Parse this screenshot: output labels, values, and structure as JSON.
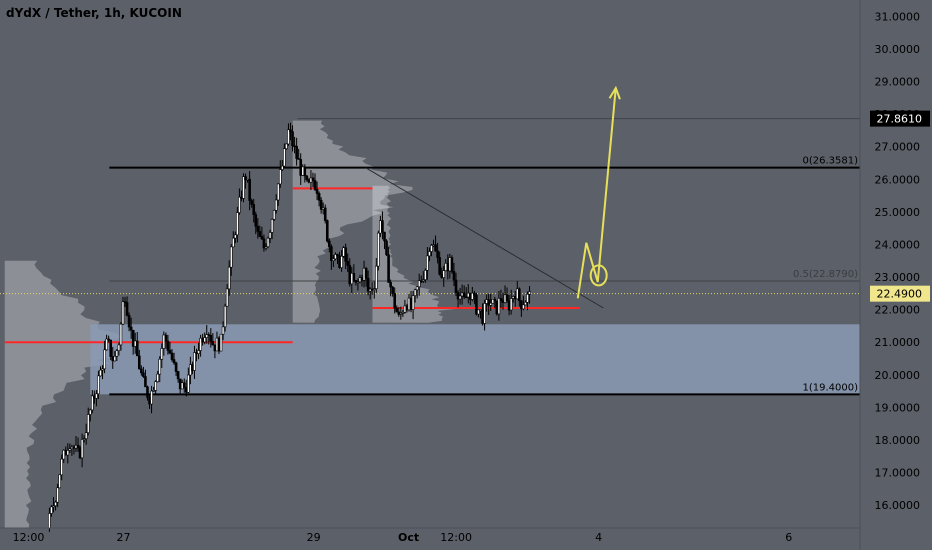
{
  "header": {
    "title": "dYdX / Tether, 1h, KUCOIN"
  },
  "chart_data": {
    "type": "candlestick",
    "title": "dYdX / Tether, 1h, KUCOIN",
    "ylim": [
      15.3,
      31.5
    ],
    "y_ticks": [
      "16.0000",
      "17.0000",
      "18.0000",
      "19.0000",
      "20.0000",
      "21.0000",
      "22.0000",
      "23.0000",
      "24.0000",
      "25.0000",
      "26.0000",
      "27.0000",
      "28.0000",
      "29.0000",
      "30.0000",
      "31.0000"
    ],
    "x_ticks": [
      {
        "label": "12:00",
        "t": 0.0
      },
      {
        "label": "27",
        "t": 1.0
      },
      {
        "label": "29",
        "t": 3.0
      },
      {
        "label": "Oct",
        "t": 4.0
      },
      {
        "label": "12:00",
        "t": 4.5
      },
      {
        "label": "4",
        "t": 6.0
      },
      {
        "label": "6",
        "t": 8.0
      }
    ],
    "x_range": [
      -0.3,
      8.75
    ],
    "current_price": {
      "label": "22.4900",
      "value": 22.49
    },
    "high_marker": {
      "label": "27.8610",
      "value": 27.861
    },
    "fib_levels": [
      {
        "label": "0(26.3581)",
        "value": 26.3581
      },
      {
        "label": "0.5(22.8790)",
        "value": 22.879
      },
      {
        "label": "1(19.4000)",
        "value": 19.4
      }
    ],
    "demand_zone": {
      "top": 21.55,
      "bottom": 19.4
    },
    "poc_levels": [
      {
        "value": 21.0,
        "t_start": -0.25,
        "t_end": 2.78
      },
      {
        "value": 25.72,
        "t_start": 2.78,
        "t_end": 3.62
      },
      {
        "value": 22.05,
        "t_start": 3.62,
        "t_end": 5.8
      }
    ],
    "trendline": {
      "start": {
        "t": 3.55,
        "y": 26.35
      },
      "end": {
        "t": 6.05,
        "y": 22.05
      }
    },
    "projection": [
      {
        "t": 5.78,
        "y": 22.35
      },
      {
        "t": 5.87,
        "y": 24.05
      },
      {
        "t": 5.99,
        "y": 22.85
      },
      {
        "t": 6.18,
        "y": 28.8
      }
    ],
    "target_circle": {
      "t": 6.0,
      "y": 23.05
    },
    "price_path": [
      {
        "t": 0.22,
        "v": 15.3
      },
      {
        "t": 0.3,
        "v": 16.2
      },
      {
        "t": 0.36,
        "v": 17.2
      },
      {
        "t": 0.45,
        "v": 18.0
      },
      {
        "t": 0.55,
        "v": 17.5
      },
      {
        "t": 0.62,
        "v": 18.3
      },
      {
        "t": 0.7,
        "v": 19.2
      },
      {
        "t": 0.78,
        "v": 20.1
      },
      {
        "t": 0.85,
        "v": 21.0
      },
      {
        "t": 0.92,
        "v": 20.4
      },
      {
        "t": 0.98,
        "v": 21.1
      },
      {
        "t": 1.03,
        "v": 22.6
      },
      {
        "t": 1.1,
        "v": 21.3
      },
      {
        "t": 1.17,
        "v": 20.5
      },
      {
        "t": 1.24,
        "v": 19.6
      },
      {
        "t": 1.3,
        "v": 19.3
      },
      {
        "t": 1.38,
        "v": 20.2
      },
      {
        "t": 1.45,
        "v": 21.2
      },
      {
        "t": 1.52,
        "v": 20.6
      },
      {
        "t": 1.6,
        "v": 19.7
      },
      {
        "t": 1.67,
        "v": 19.6
      },
      {
        "t": 1.75,
        "v": 20.3
      },
      {
        "t": 1.82,
        "v": 21.0
      },
      {
        "t": 1.9,
        "v": 21.5
      },
      {
        "t": 1.97,
        "v": 20.9
      },
      {
        "t": 2.05,
        "v": 21.0
      },
      {
        "t": 2.1,
        "v": 22.6
      },
      {
        "t": 2.17,
        "v": 24.0
      },
      {
        "t": 2.24,
        "v": 25.2
      },
      {
        "t": 2.3,
        "v": 26.2
      },
      {
        "t": 2.37,
        "v": 25.1
      },
      {
        "t": 2.43,
        "v": 24.3
      },
      {
        "t": 2.5,
        "v": 23.9
      },
      {
        "t": 2.57,
        "v": 24.6
      },
      {
        "t": 2.63,
        "v": 25.6
      },
      {
        "t": 2.7,
        "v": 26.5
      },
      {
        "t": 2.76,
        "v": 27.5
      },
      {
        "t": 2.83,
        "v": 26.8
      },
      {
        "t": 2.9,
        "v": 26.2
      },
      {
        "t": 2.96,
        "v": 25.7
      },
      {
        "t": 3.02,
        "v": 26.0
      },
      {
        "t": 3.08,
        "v": 25.6
      },
      {
        "t": 3.13,
        "v": 24.8
      },
      {
        "t": 3.2,
        "v": 23.8
      },
      {
        "t": 3.27,
        "v": 23.4
      },
      {
        "t": 3.34,
        "v": 23.7
      },
      {
        "t": 3.4,
        "v": 23.0
      },
      {
        "t": 3.47,
        "v": 22.7
      },
      {
        "t": 3.55,
        "v": 23.2
      },
      {
        "t": 3.6,
        "v": 22.5
      },
      {
        "t": 3.67,
        "v": 22.9
      },
      {
        "t": 3.72,
        "v": 25.0
      },
      {
        "t": 3.78,
        "v": 23.6
      },
      {
        "t": 3.85,
        "v": 22.4
      },
      {
        "t": 3.92,
        "v": 21.7
      },
      {
        "t": 3.99,
        "v": 22.3
      },
      {
        "t": 4.05,
        "v": 22.0
      },
      {
        "t": 4.12,
        "v": 22.7
      },
      {
        "t": 4.2,
        "v": 23.3
      },
      {
        "t": 4.25,
        "v": 24.2
      },
      {
        "t": 4.32,
        "v": 23.6
      },
      {
        "t": 4.38,
        "v": 23.0
      },
      {
        "t": 4.45,
        "v": 23.5
      },
      {
        "t": 4.52,
        "v": 22.7
      },
      {
        "t": 4.6,
        "v": 22.2
      },
      {
        "t": 4.66,
        "v": 22.6
      },
      {
        "t": 4.73,
        "v": 22.1
      },
      {
        "t": 4.8,
        "v": 21.8
      },
      {
        "t": 4.87,
        "v": 22.3
      },
      {
        "t": 4.94,
        "v": 22.0
      },
      {
        "t": 5.0,
        "v": 22.4
      },
      {
        "t": 5.07,
        "v": 22.1
      },
      {
        "t": 5.14,
        "v": 22.6
      },
      {
        "t": 5.2,
        "v": 22.2
      },
      {
        "t": 5.28,
        "v": 22.4
      }
    ]
  }
}
